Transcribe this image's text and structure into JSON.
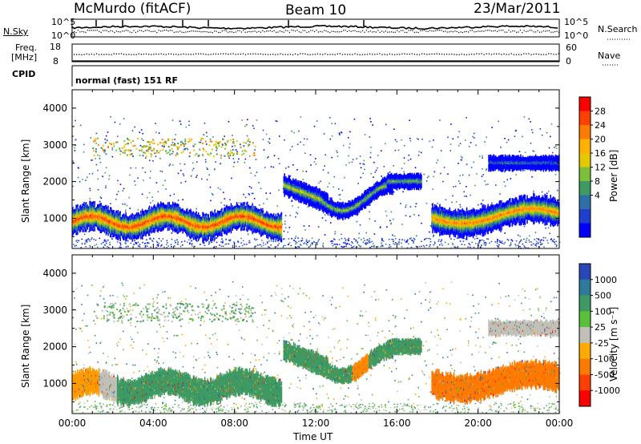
{
  "header": {
    "station": "McMurdo (fitACF)",
    "beam": "Beam 10",
    "date": "23/Mar/2011"
  },
  "summary": {
    "nsky_label": "N.Sky",
    "nsearch_label": "N.Search",
    "scale_top": "10^5",
    "scale_bottom": "10^0",
    "freq_label_1": "Freq.",
    "freq_label_2": "[MHz]",
    "freq_ticks": [
      "18",
      "8"
    ],
    "nave_label": "Nave",
    "nave_ticks": [
      "60",
      "0"
    ],
    "cpid_label": "CPID",
    "cpid_value": "normal (fast) 151 RF"
  },
  "chart_data": [
    {
      "type": "heatmap",
      "title": "",
      "ylabel": "Slant Range [km]",
      "ylim": [
        180,
        4500
      ],
      "y_ticks": [
        "4000",
        "3000",
        "2000",
        "1000"
      ],
      "x_ticks": [
        "00:00",
        "04:00",
        "08:00",
        "12:00",
        "16:00",
        "20:00",
        "00:00"
      ],
      "colorbar": {
        "label": "Power [dB]",
        "ticks": [
          "28",
          "24",
          "20",
          "16",
          "12",
          "8",
          "4"
        ],
        "colors": [
          "#ff0000",
          "#ff4000",
          "#ff7a00",
          "#ffb000",
          "#e6c800",
          "#7cbf3a",
          "#3e9a62",
          "#2f6fa8",
          "#1e3fd0",
          "#0000ff"
        ]
      }
    },
    {
      "type": "heatmap",
      "title": "",
      "ylabel": "Slant Range [km]",
      "ylim": [
        180,
        4500
      ],
      "y_ticks": [
        "4000",
        "3000",
        "2000",
        "1000"
      ],
      "x_ticks": [
        "00:00",
        "04:00",
        "08:00",
        "12:00",
        "16:00",
        "20:00",
        "00:00"
      ],
      "xlabel": "Time UT",
      "colorbar": {
        "label": "Velocity [m s⁻¹]",
        "ticks": [
          "1000",
          "500",
          "100",
          "25",
          "-25",
          "-100",
          "-500",
          "-1000"
        ],
        "colors": [
          "#2848b8",
          "#2f7a9a",
          "#3e9a62",
          "#5bbf3a",
          "#c0c0b8",
          "#ffaa00",
          "#ff7a00",
          "#ff4000",
          "#ff0000"
        ]
      }
    }
  ]
}
